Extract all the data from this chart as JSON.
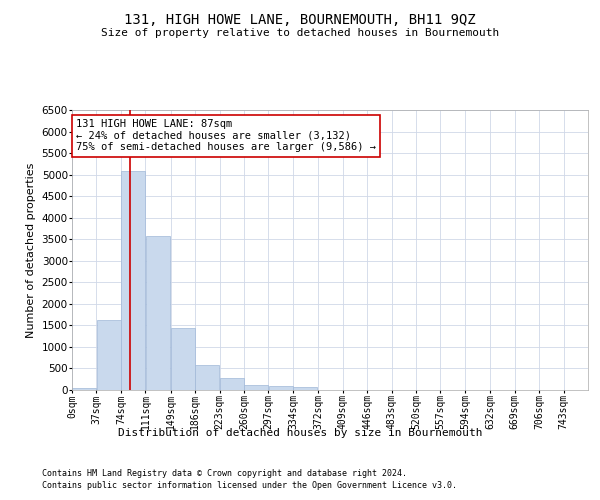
{
  "title": "131, HIGH HOWE LANE, BOURNEMOUTH, BH11 9QZ",
  "subtitle": "Size of property relative to detached houses in Bournemouth",
  "xlabel": "Distribution of detached houses by size in Bournemouth",
  "ylabel": "Number of detached properties",
  "footer_line1": "Contains HM Land Registry data © Crown copyright and database right 2024.",
  "footer_line2": "Contains public sector information licensed under the Open Government Licence v3.0.",
  "annotation_title": "131 HIGH HOWE LANE: 87sqm",
  "annotation_line1": "← 24% of detached houses are smaller (3,132)",
  "annotation_line2": "75% of semi-detached houses are larger (9,586) →",
  "property_size_sqm": 87,
  "bar_color": "#c9d9ed",
  "bar_edge_color": "#a0b8d8",
  "red_line_color": "#cc0000",
  "annotation_box_color": "#ffffff",
  "annotation_box_edge": "#cc0000",
  "grid_color": "#d0d8e8",
  "background_color": "#ffffff",
  "bin_labels": [
    "0sqm",
    "37sqm",
    "74sqm",
    "111sqm",
    "149sqm",
    "186sqm",
    "223sqm",
    "260sqm",
    "297sqm",
    "334sqm",
    "372sqm",
    "409sqm",
    "446sqm",
    "483sqm",
    "520sqm",
    "557sqm",
    "594sqm",
    "632sqm",
    "669sqm",
    "706sqm",
    "743sqm"
  ],
  "bin_edges": [
    0,
    37,
    74,
    111,
    149,
    186,
    223,
    260,
    297,
    334,
    372,
    409,
    446,
    483,
    520,
    557,
    594,
    632,
    669,
    706,
    743
  ],
  "bar_values": [
    50,
    1620,
    5080,
    3570,
    1440,
    580,
    270,
    115,
    90,
    60,
    0,
    0,
    0,
    0,
    0,
    0,
    0,
    0,
    0,
    0
  ],
  "ylim": [
    0,
    6500
  ],
  "yticks": [
    0,
    500,
    1000,
    1500,
    2000,
    2500,
    3000,
    3500,
    4000,
    4500,
    5000,
    5500,
    6000,
    6500
  ]
}
